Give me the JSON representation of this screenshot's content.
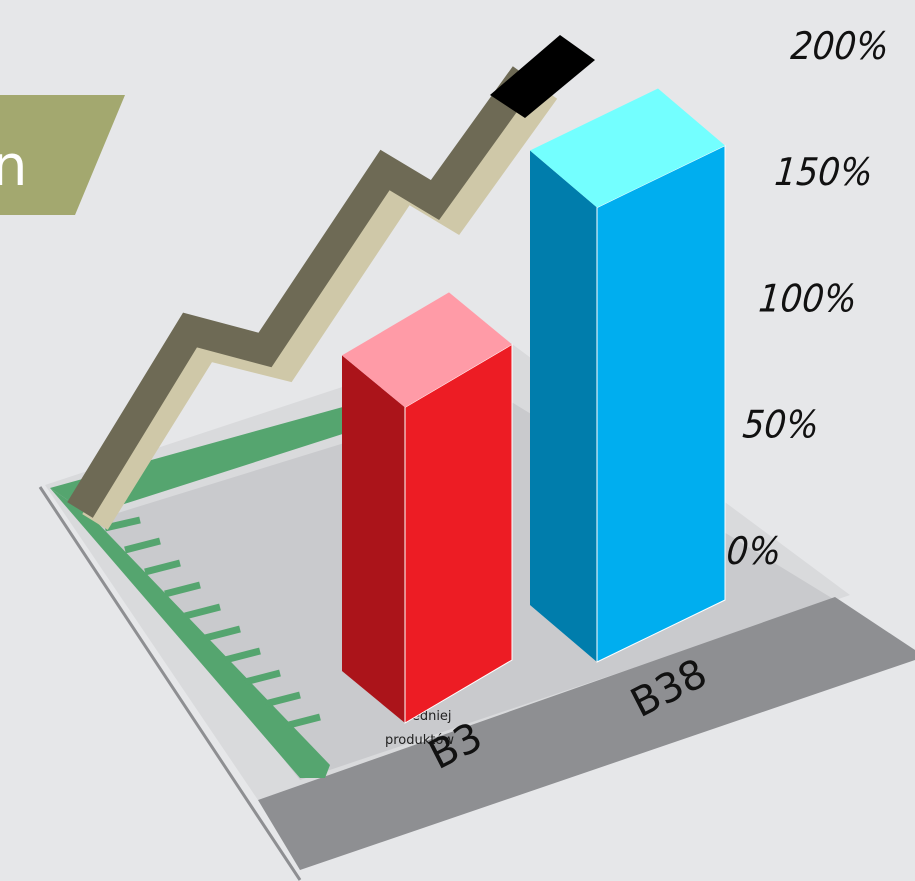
{
  "chart_data": {
    "type": "bar3d",
    "banner": "n",
    "notes": [
      "średniej",
      "produktów"
    ],
    "categories": [
      "B3",
      "B38"
    ],
    "values": [
      125,
      180
    ],
    "colors": [
      "#ed1c24",
      "#00aeef"
    ],
    "ylim": [
      0,
      200
    ],
    "yticks": [
      {
        "value": 0,
        "label": "0%"
      },
      {
        "value": 50,
        "label": "50%"
      },
      {
        "value": 100,
        "label": "100%"
      },
      {
        "value": 150,
        "label": "150%"
      },
      {
        "value": 200,
        "label": "200%"
      }
    ]
  }
}
